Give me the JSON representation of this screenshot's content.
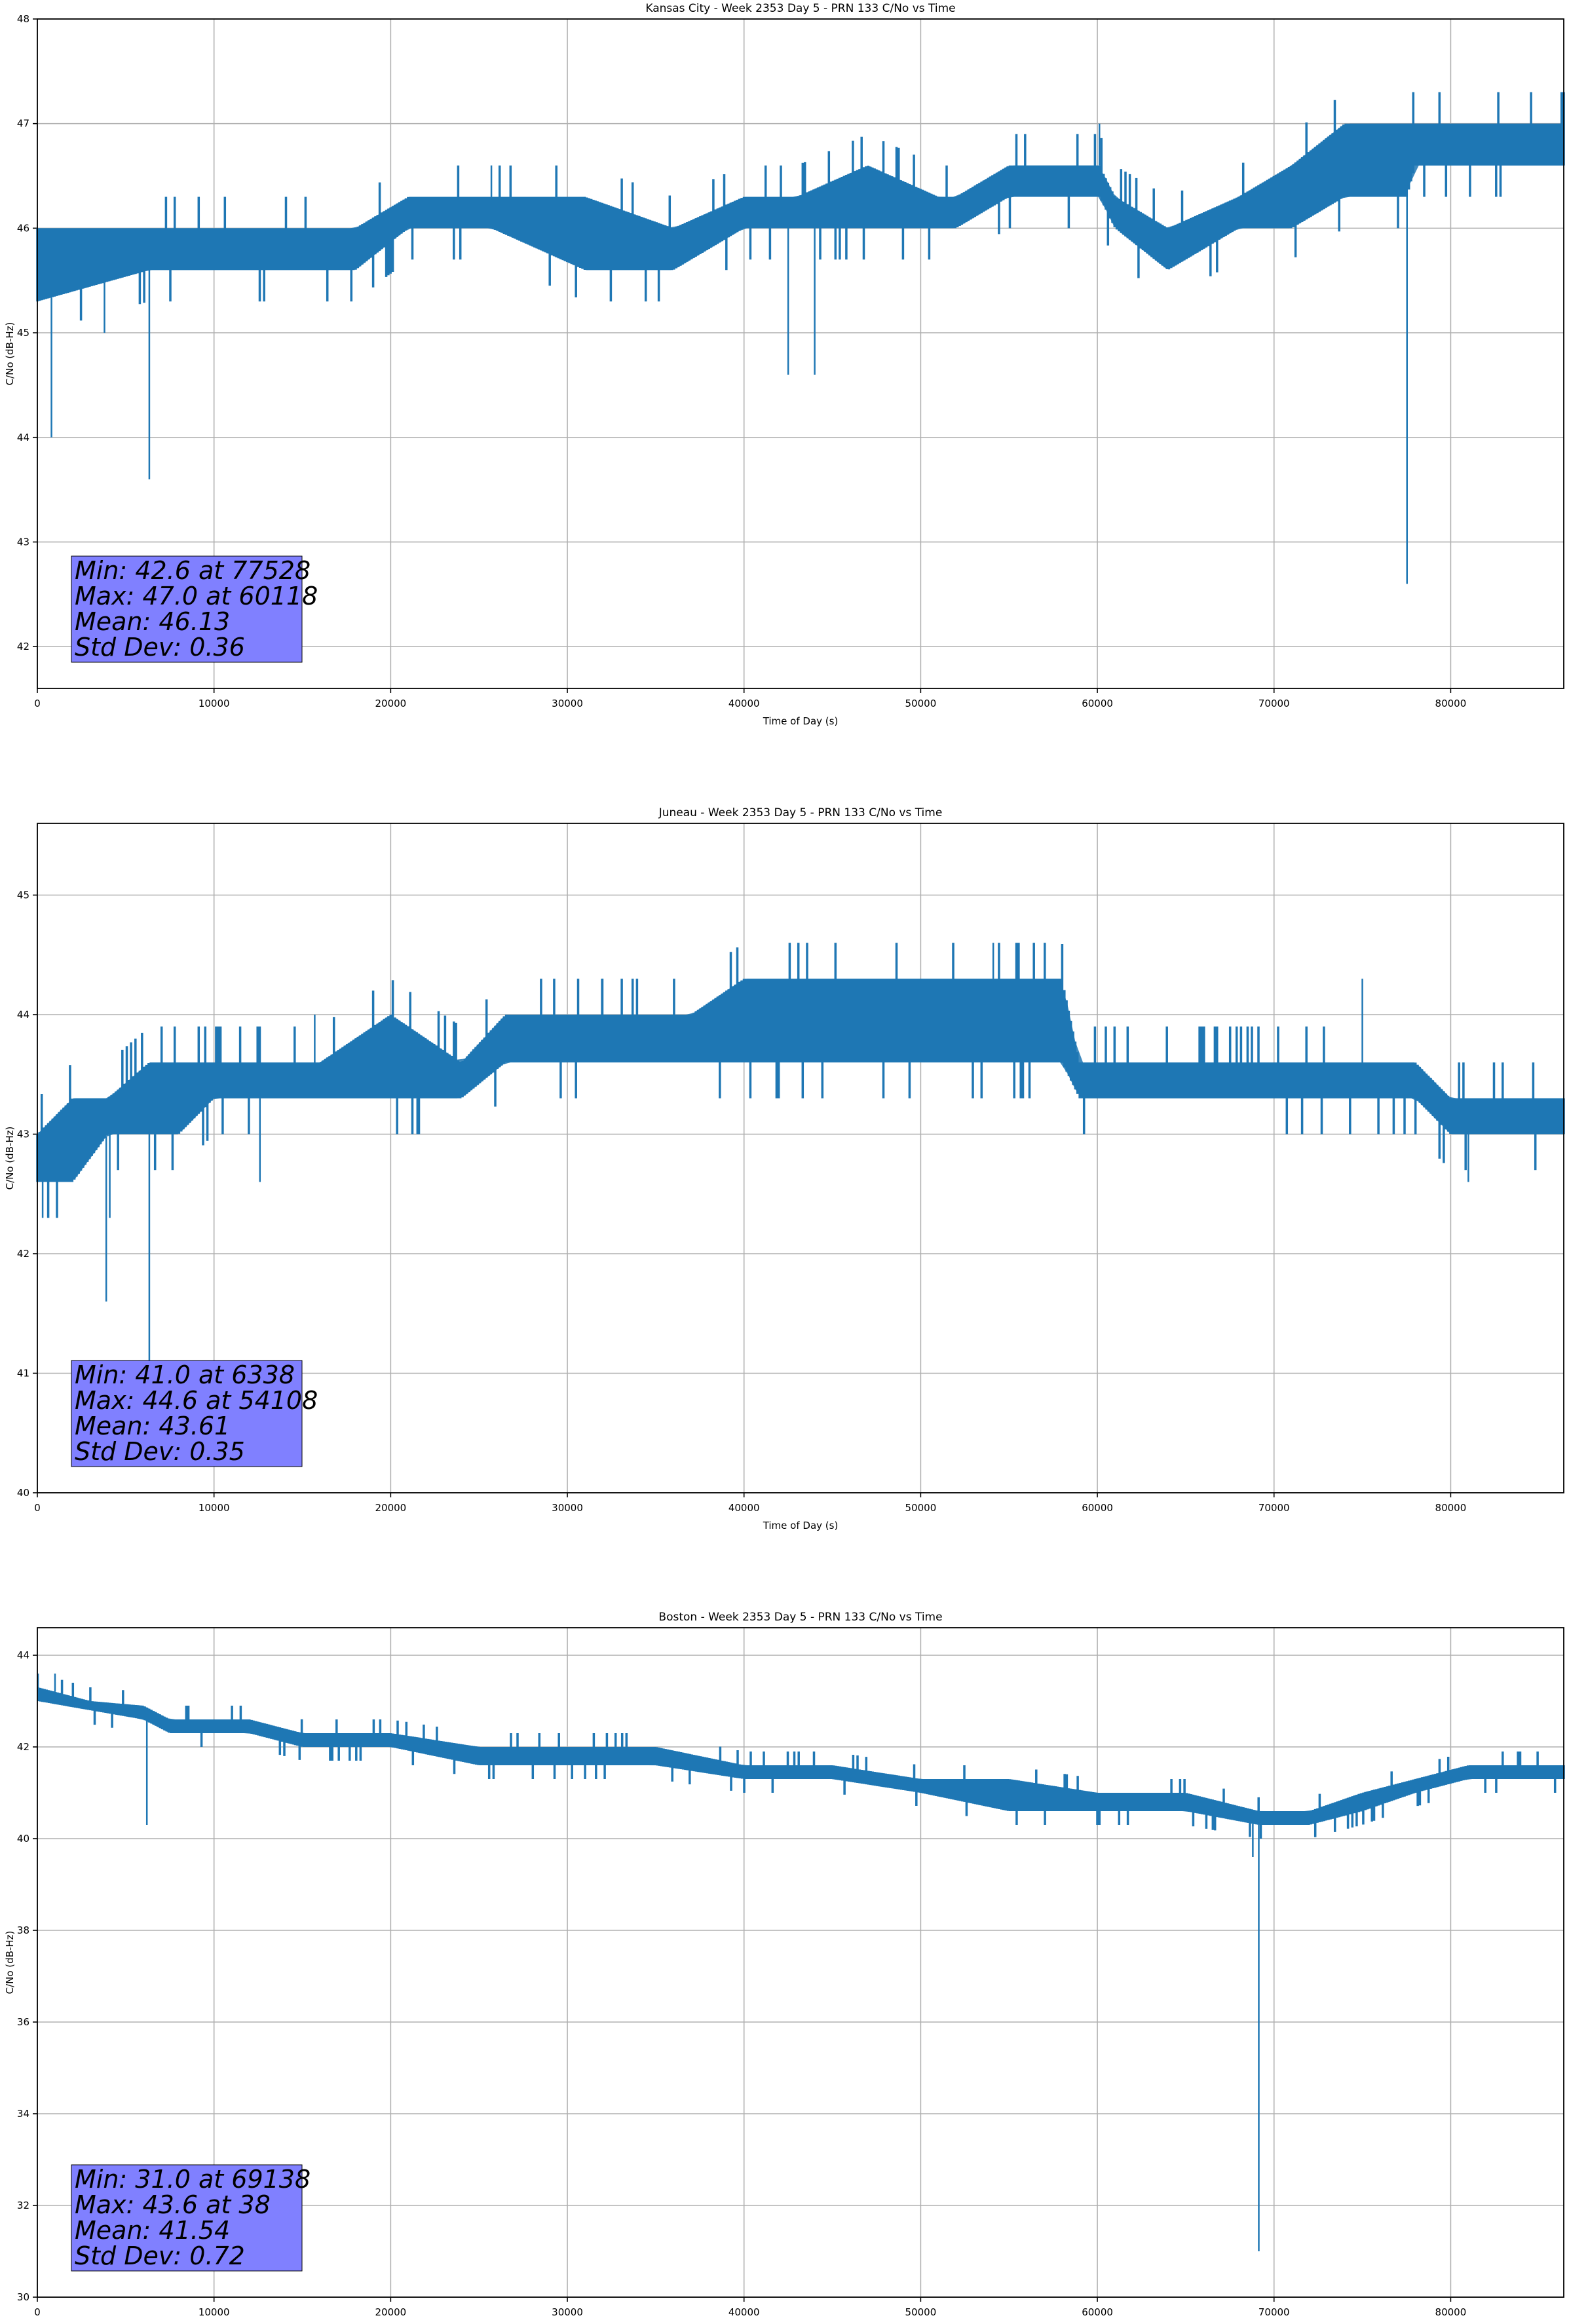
{
  "chart_data": [
    {
      "type": "line",
      "title": "Kansas City - Week 2353 Day 5 - PRN 133 C/No vs Time",
      "xlabel": "Time of Day (s)",
      "ylabel": "C/No (dB-Hz)",
      "xlim": [
        0,
        86400
      ],
      "ylim": [
        41.6,
        48
      ],
      "xticks": [
        "0",
        "10000",
        "20000",
        "30000",
        "40000",
        "50000",
        "60000",
        "70000",
        "80000"
      ],
      "yticks": [
        "42",
        "43",
        "44",
        "45",
        "46",
        "47",
        "48"
      ],
      "grid": true,
      "line_color": "#1f77b4",
      "stats": [
        "Min: 42.6 at 77528",
        "Max: 47.0 at 60118",
        "Mean: 46.13",
        "Std Dev: 0.36"
      ],
      "stats_box_color": "#8080ff",
      "series": [
        {
          "x": [
            0,
            6338,
            6500,
            18000,
            21000,
            25700,
            31000,
            36000,
            40000,
            43000,
            47000,
            51000,
            52000,
            55000,
            60118,
            61000,
            64000,
            68000,
            71000,
            74000,
            77528,
            78000,
            82000,
            86400
          ],
          "low": [
            45.3,
            45.6,
            45.6,
            45.6,
            46.0,
            46.0,
            45.6,
            45.6,
            46.0,
            46.0,
            46.0,
            46.0,
            46.0,
            46.3,
            46.3,
            46.0,
            45.6,
            46.0,
            46.0,
            46.3,
            46.3,
            46.6,
            46.6,
            46.6
          ],
          "high": [
            46.0,
            46.0,
            46.0,
            46.0,
            46.3,
            46.3,
            46.3,
            46.0,
            46.3,
            46.3,
            46.6,
            46.3,
            46.3,
            46.6,
            46.6,
            46.3,
            46.0,
            46.3,
            46.6,
            47.0,
            47.0,
            47.0,
            47.0,
            47.0
          ],
          "dips": [
            [
              800,
              44.0
            ],
            [
              3800,
              45.0
            ],
            [
              6338,
              43.6
            ],
            [
              42500,
              44.6
            ],
            [
              44000,
              44.6
            ],
            [
              77528,
              42.6
            ]
          ],
          "spikes": [
            [
              25700,
              46.6
            ],
            [
              60118,
              47.0
            ]
          ]
        }
      ]
    },
    {
      "type": "line",
      "title": "Juneau - Week 2353 Day 5 - PRN 133 C/No vs Time",
      "xlabel": "Time of Day (s)",
      "ylabel": "C/No (dB-Hz)",
      "xlim": [
        0,
        86400
      ],
      "ylim": [
        40,
        45.6
      ],
      "xticks": [
        "0",
        "10000",
        "20000",
        "30000",
        "40000",
        "50000",
        "60000",
        "70000",
        "80000"
      ],
      "yticks": [
        "40",
        "41",
        "42",
        "43",
        "44",
        "45"
      ],
      "grid": true,
      "line_color": "#1f77b4",
      "stats": [
        "Min: 41.0 at 6338",
        "Max: 44.6 at 54108",
        "Mean: 43.61",
        "Std Dev: 0.35"
      ],
      "stats_box_color": "#8080ff",
      "series": [
        {
          "x": [
            0,
            2000,
            4000,
            6338,
            8000,
            10000,
            13000,
            16000,
            20000,
            24000,
            26500,
            30000,
            37000,
            40000,
            45000,
            50000,
            54108,
            58000,
            59000,
            62000,
            70000,
            78000,
            80000,
            82000,
            86400
          ],
          "low": [
            42.6,
            42.6,
            43.0,
            43.0,
            43.0,
            43.3,
            43.3,
            43.3,
            43.3,
            43.3,
            43.6,
            43.6,
            43.6,
            43.6,
            43.6,
            43.6,
            43.6,
            43.6,
            43.3,
            43.3,
            43.3,
            43.3,
            43.0,
            43.0,
            43.0
          ],
          "high": [
            43.0,
            43.3,
            43.3,
            43.6,
            43.6,
            43.6,
            43.6,
            43.6,
            44.0,
            43.6,
            44.0,
            44.0,
            44.0,
            44.3,
            44.3,
            44.3,
            44.3,
            44.3,
            43.6,
            43.6,
            43.6,
            43.6,
            43.3,
            43.3,
            43.3
          ],
          "dips": [
            [
              300,
              42.3
            ],
            [
              3900,
              41.6
            ],
            [
              4100,
              42.3
            ],
            [
              6338,
              41.0
            ],
            [
              12600,
              42.6
            ],
            [
              21500,
              43.0
            ],
            [
              81000,
              42.6
            ]
          ],
          "spikes": [
            [
              15700,
              44.0
            ],
            [
              32000,
              44.3
            ],
            [
              54108,
              44.6
            ],
            [
              75000,
              44.3
            ]
          ]
        }
      ]
    },
    {
      "type": "line",
      "title": "Boston - Week 2353 Day 5 - PRN 133 C/No vs Time",
      "xlabel": "Time of Day (s)",
      "ylabel": "C/No (dB-Hz)",
      "xlim": [
        0,
        86400
      ],
      "ylim": [
        30,
        44.6
      ],
      "xticks": [
        "0",
        "10000",
        "20000",
        "30000",
        "40000",
        "50000",
        "60000",
        "70000",
        "80000"
      ],
      "yticks": [
        "30",
        "32",
        "34",
        "36",
        "38",
        "40",
        "42",
        "44"
      ],
      "grid": true,
      "line_color": "#1f77b4",
      "stats": [
        "Min: 31.0 at 69138",
        "Max: 43.6 at 38",
        "Mean: 41.54",
        "Std Dev: 0.72"
      ],
      "stats_box_color": "#8080ff",
      "series": [
        {
          "x": [
            38,
            3000,
            6000,
            7500,
            12000,
            15000,
            20000,
            25000,
            30000,
            35000,
            40000,
            45000,
            50000,
            55000,
            60000,
            65000,
            69138,
            72000,
            75000,
            78000,
            81000,
            84000,
            86400
          ],
          "low": [
            43.0,
            42.8,
            42.6,
            42.3,
            42.3,
            42.0,
            42.0,
            41.6,
            41.6,
            41.6,
            41.3,
            41.3,
            41.0,
            40.6,
            40.6,
            40.6,
            40.3,
            40.3,
            40.6,
            41.0,
            41.3,
            41.3,
            41.3
          ],
          "high": [
            43.3,
            43.0,
            42.9,
            42.6,
            42.6,
            42.3,
            42.3,
            42.0,
            42.0,
            42.0,
            41.6,
            41.6,
            41.3,
            41.3,
            41.0,
            41.0,
            40.6,
            40.6,
            41.0,
            41.3,
            41.6,
            41.6,
            41.6
          ],
          "dips": [
            [
              6200,
              40.3
            ],
            [
              69138,
              31.0
            ],
            [
              68800,
              39.6
            ]
          ],
          "spikes": [
            [
              38,
              43.6
            ],
            [
              1000,
              43.6
            ]
          ]
        }
      ]
    }
  ]
}
